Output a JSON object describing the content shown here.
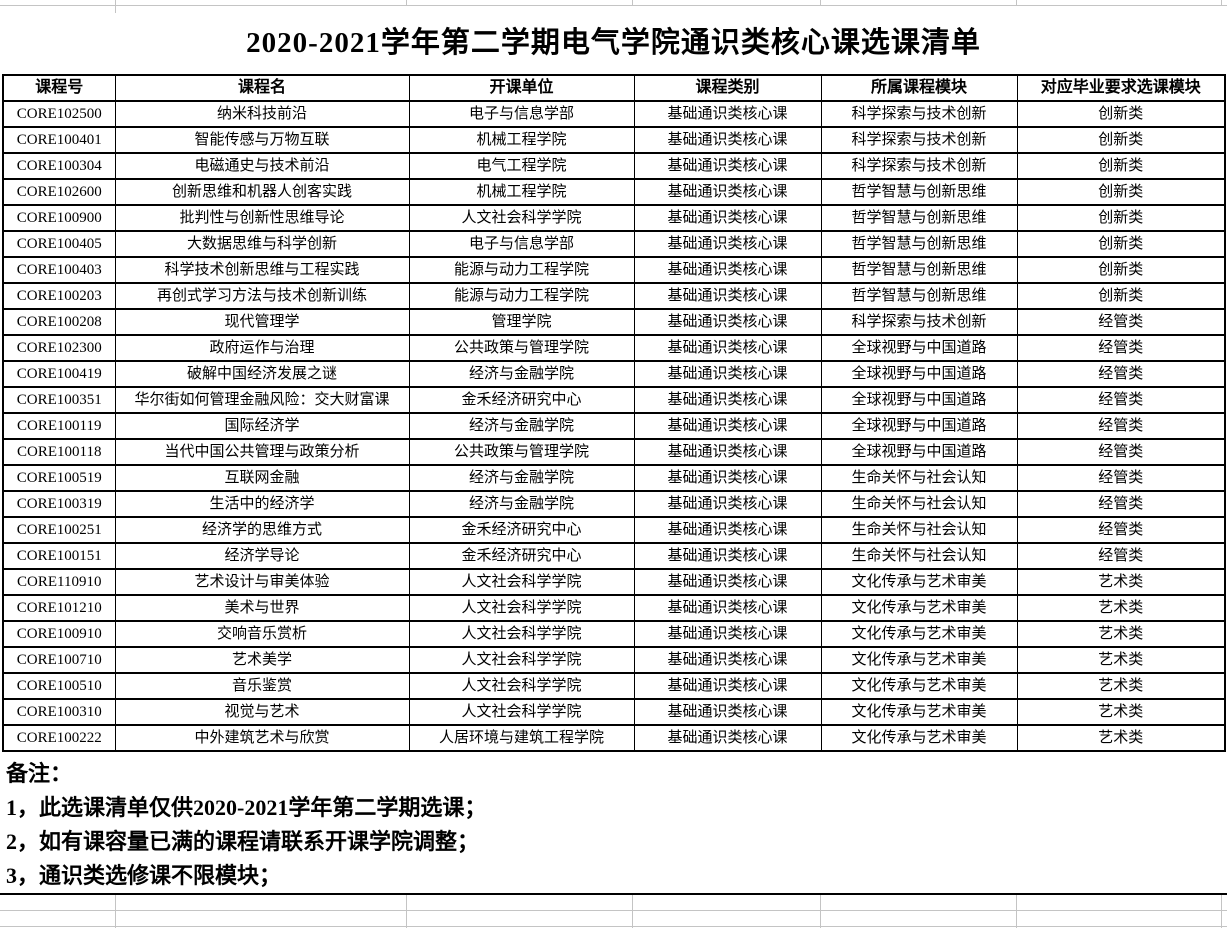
{
  "title": "2020-2021学年第二学期电气学院通识类核心课选课清单",
  "table": {
    "headers": [
      "课程号",
      "课程名",
      "开课单位",
      "课程类别",
      "所属课程模块",
      "对应毕业要求选课模块"
    ],
    "rows": [
      [
        "CORE102500",
        "纳米科技前沿",
        "电子与信息学部",
        "基础通识类核心课",
        "科学探索与技术创新",
        "创新类"
      ],
      [
        "CORE100401",
        "智能传感与万物互联",
        "机械工程学院",
        "基础通识类核心课",
        "科学探索与技术创新",
        "创新类"
      ],
      [
        "CORE100304",
        "电磁通史与技术前沿",
        "电气工程学院",
        "基础通识类核心课",
        "科学探索与技术创新",
        "创新类"
      ],
      [
        "CORE102600",
        "创新思维和机器人创客实践",
        "机械工程学院",
        "基础通识类核心课",
        "哲学智慧与创新思维",
        "创新类"
      ],
      [
        "CORE100900",
        "批判性与创新性思维导论",
        "人文社会科学学院",
        "基础通识类核心课",
        "哲学智慧与创新思维",
        "创新类"
      ],
      [
        "CORE100405",
        "大数据思维与科学创新",
        "电子与信息学部",
        "基础通识类核心课",
        "哲学智慧与创新思维",
        "创新类"
      ],
      [
        "CORE100403",
        "科学技术创新思维与工程实践",
        "能源与动力工程学院",
        "基础通识类核心课",
        "哲学智慧与创新思维",
        "创新类"
      ],
      [
        "CORE100203",
        "再创式学习方法与技术创新训练",
        "能源与动力工程学院",
        "基础通识类核心课",
        "哲学智慧与创新思维",
        "创新类"
      ],
      [
        "CORE100208",
        "现代管理学",
        "管理学院",
        "基础通识类核心课",
        "科学探索与技术创新",
        "经管类"
      ],
      [
        "CORE102300",
        "政府运作与治理",
        "公共政策与管理学院",
        "基础通识类核心课",
        "全球视野与中国道路",
        "经管类"
      ],
      [
        "CORE100419",
        "破解中国经济发展之谜",
        "经济与金融学院",
        "基础通识类核心课",
        "全球视野与中国道路",
        "经管类"
      ],
      [
        "CORE100351",
        "华尔街如何管理金融风险：交大财富课",
        "金禾经济研究中心",
        "基础通识类核心课",
        "全球视野与中国道路",
        "经管类"
      ],
      [
        "CORE100119",
        "国际经济学",
        "经济与金融学院",
        "基础通识类核心课",
        "全球视野与中国道路",
        "经管类"
      ],
      [
        "CORE100118",
        "当代中国公共管理与政策分析",
        "公共政策与管理学院",
        "基础通识类核心课",
        "全球视野与中国道路",
        "经管类"
      ],
      [
        "CORE100519",
        "互联网金融",
        "经济与金融学院",
        "基础通识类核心课",
        "生命关怀与社会认知",
        "经管类"
      ],
      [
        "CORE100319",
        "生活中的经济学",
        "经济与金融学院",
        "基础通识类核心课",
        "生命关怀与社会认知",
        "经管类"
      ],
      [
        "CORE100251",
        "经济学的思维方式",
        "金禾经济研究中心",
        "基础通识类核心课",
        "生命关怀与社会认知",
        "经管类"
      ],
      [
        "CORE100151",
        "经济学导论",
        "金禾经济研究中心",
        "基础通识类核心课",
        "生命关怀与社会认知",
        "经管类"
      ],
      [
        "CORE110910",
        "艺术设计与审美体验",
        "人文社会科学学院",
        "基础通识类核心课",
        "文化传承与艺术审美",
        "艺术类"
      ],
      [
        "CORE101210",
        "美术与世界",
        "人文社会科学学院",
        "基础通识类核心课",
        "文化传承与艺术审美",
        "艺术类"
      ],
      [
        "CORE100910",
        "交响音乐赏析",
        "人文社会科学学院",
        "基础通识类核心课",
        "文化传承与艺术审美",
        "艺术类"
      ],
      [
        "CORE100710",
        "艺术美学",
        "人文社会科学学院",
        "基础通识类核心课",
        "文化传承与艺术审美",
        "艺术类"
      ],
      [
        "CORE100510",
        "音乐鉴赏",
        "人文社会科学学院",
        "基础通识类核心课",
        "文化传承与艺术审美",
        "艺术类"
      ],
      [
        "CORE100310",
        "视觉与艺术",
        "人文社会科学学院",
        "基础通识类核心课",
        "文化传承与艺术审美",
        "艺术类"
      ],
      [
        "CORE100222",
        "中外建筑艺术与欣赏",
        "人居环境与建筑工程学院",
        "基础通识类核心课",
        "文化传承与艺术审美",
        "艺术类"
      ]
    ]
  },
  "notes": {
    "label": "备注：",
    "items": [
      "1，此选课清单仅供2020-2021学年第二学期选课；",
      "2，如有课容量已满的课程请联系开课学院调整；",
      "3，通识类选修课不限模块；"
    ]
  },
  "colors": {
    "text": "#000000",
    "table_border": "#000000",
    "gridline": "#c4c4c4",
    "background": "#ffffff"
  }
}
